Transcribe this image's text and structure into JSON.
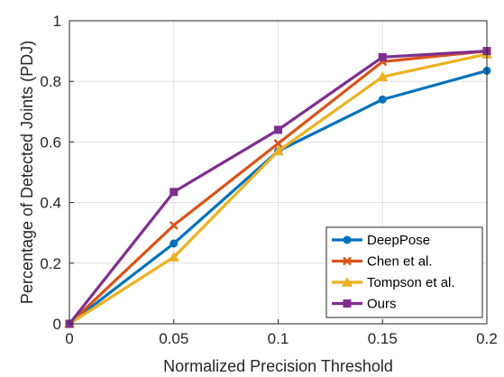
{
  "chart_data": {
    "type": "line",
    "title": "",
    "xlabel": "Normalized Precision Threshold",
    "ylabel": "Percentage of Detected Joints (PDJ)",
    "x": [
      0,
      0.05,
      0.1,
      0.15,
      0.2
    ],
    "xlim": [
      0,
      0.2
    ],
    "ylim": [
      0,
      1
    ],
    "xticks": [
      0,
      0.05,
      0.1,
      0.15,
      0.2
    ],
    "xtick_labels": [
      "0",
      "0.05",
      "0.1",
      "0.15",
      "0.2"
    ],
    "yticks": [
      0,
      0.2,
      0.4,
      0.6,
      0.8,
      1
    ],
    "ytick_labels": [
      "0",
      "0.2",
      "0.4",
      "0.6",
      "0.8",
      "1"
    ],
    "grid": true,
    "legend_position": "bottom-right",
    "series": [
      {
        "name": "DeepPose",
        "color": "#0072BD",
        "marker": "circle",
        "values": [
          0,
          0.265,
          0.57,
          0.74,
          0.835
        ]
      },
      {
        "name": "Chen et al.",
        "color": "#D95319",
        "marker": "x",
        "values": [
          0,
          0.325,
          0.595,
          0.865,
          0.9
        ]
      },
      {
        "name": "Tompson et al.",
        "color": "#EDB120",
        "marker": "triangle",
        "values": [
          0,
          0.22,
          0.57,
          0.815,
          0.89
        ]
      },
      {
        "name": "Ours",
        "color": "#7E2F8E",
        "marker": "square",
        "values": [
          0,
          0.435,
          0.64,
          0.88,
          0.9
        ]
      }
    ]
  }
}
